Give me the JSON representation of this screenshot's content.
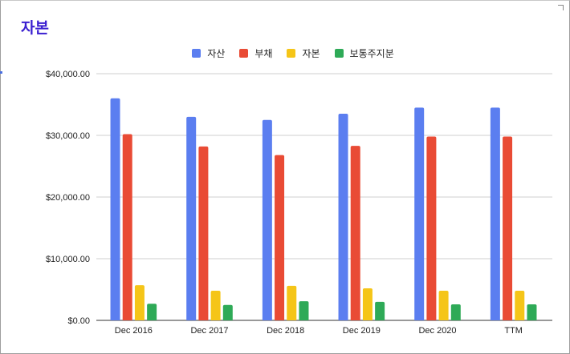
{
  "chart_data": {
    "type": "bar",
    "title": "자본",
    "categories": [
      "Dec 2016",
      "Dec 2017",
      "Dec 2018",
      "Dec 2019",
      "Dec 2020",
      "TTM"
    ],
    "series": [
      {
        "name": "자산",
        "color": "#5b7ef0",
        "values": [
          36000,
          33000,
          32500,
          33500,
          34500,
          34500
        ]
      },
      {
        "name": "부채",
        "color": "#e94b35",
        "values": [
          30200,
          28200,
          26800,
          28300,
          29800,
          29800
        ]
      },
      {
        "name": "자본",
        "color": "#f5c518",
        "values": [
          5700,
          4800,
          5600,
          5200,
          4800,
          4800
        ]
      },
      {
        "name": "보통주지분",
        "color": "#2eaa57",
        "values": [
          2700,
          2500,
          3100,
          3000,
          2600,
          2600
        ]
      }
    ],
    "ylim": [
      0,
      40000
    ],
    "yticks": [
      0,
      10000,
      20000,
      30000,
      40000
    ],
    "ytick_labels": [
      "$0.00",
      "$10,000.00",
      "$20,000.00",
      "$30,000.00",
      "$40,000.00"
    ],
    "grid": true,
    "legend_position": "top-center"
  }
}
